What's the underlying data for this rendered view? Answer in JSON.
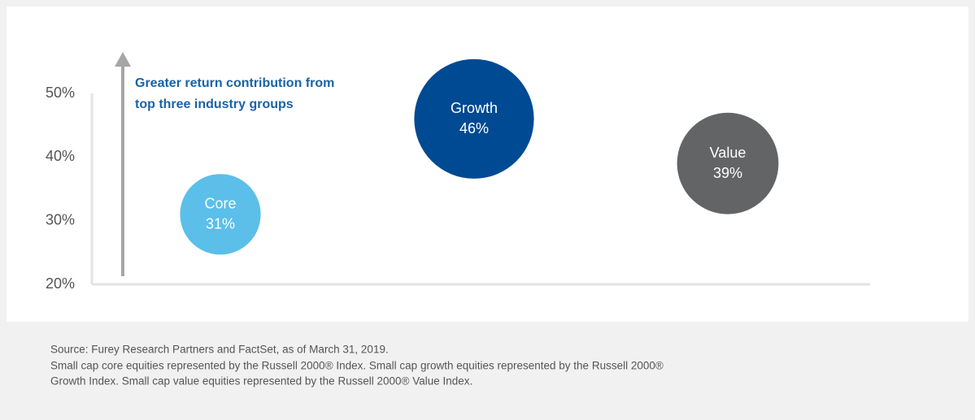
{
  "chart_data": {
    "type": "bubble",
    "annotation": [
      "Greater return contribution from",
      "top three industry groups"
    ],
    "categories": [
      "Core",
      "Growth",
      "Value"
    ],
    "values": [
      31,
      46,
      39
    ],
    "value_labels": [
      "31%",
      "46%",
      "39%"
    ],
    "colors": [
      "#5bbfea",
      "#004a93",
      "#636466"
    ],
    "ylim": [
      20,
      50
    ],
    "yticks": [
      {
        "value": 20,
        "label": "20%"
      },
      {
        "value": 30,
        "label": "30%"
      },
      {
        "value": 40,
        "label": "40%"
      },
      {
        "value": 50,
        "label": "50%"
      }
    ],
    "grid": false,
    "notes": [
      "Source: Furey Research Partners and FactSet, as of March 31, 2019.",
      "Small cap core equities represented by the Russell 2000® Index. Small cap growth equities represented by the Russell 2000®",
      "Growth Index. Small cap value equities represented by the Russell 2000® Value Index."
    ]
  }
}
